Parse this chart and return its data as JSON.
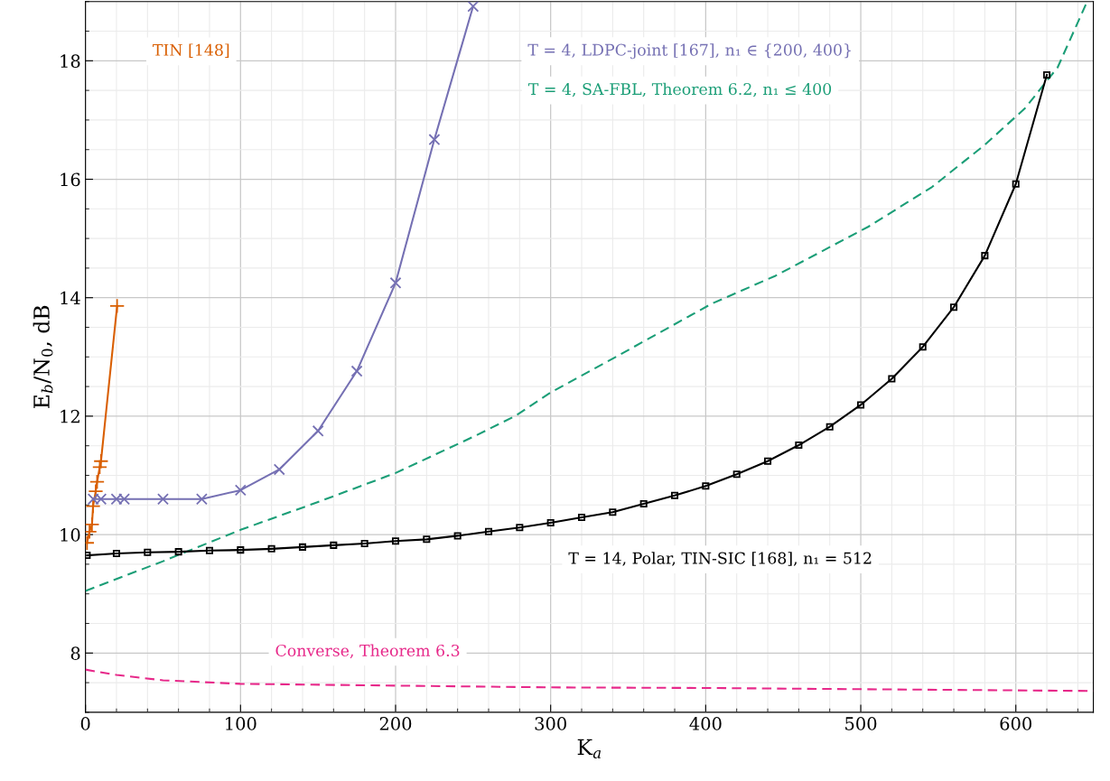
{
  "chart_data": {
    "type": "line",
    "xlabel": "K$_{a}$",
    "ylabel": "E$_{b}$/N$_{0}$, dB",
    "xlim": [
      0,
      650
    ],
    "xticks": [
      0,
      100,
      200,
      300,
      400,
      500,
      600
    ],
    "ylim": [
      7,
      19
    ],
    "yticks": [
      8,
      10,
      12,
      14,
      16,
      18
    ],
    "grid": true,
    "legend": false,
    "series": [
      {
        "name": "TIN [148]",
        "color": "#d95f02",
        "marker": "plus",
        "line_style": "solid",
        "x": [
          1,
          2.6,
          4.2,
          4.9,
          6.6,
          7.5,
          9.2,
          10,
          20.4
        ],
        "values": [
          9.86,
          10.05,
          10.17,
          10.48,
          10.73,
          10.89,
          11.14,
          11.24,
          13.86
        ]
      },
      {
        "name": "T = 4, LDPC-joint [167], n₁ ∈ {200, 400}",
        "color": "#7570b3",
        "marker": "cross",
        "line_style": "solid",
        "x": [
          5,
          10,
          20,
          25,
          50,
          75,
          100,
          125,
          150,
          175,
          200,
          225,
          250
        ],
        "values": [
          10.6,
          10.6,
          10.6,
          10.6,
          10.6,
          10.6,
          10.75,
          11.1,
          11.75,
          12.76,
          14.25,
          16.67,
          18.92
        ]
      },
      {
        "name": "T = 4, SA-FBL, Theorem 6.2, n₁ ≤ 400",
        "color": "#1b9e77",
        "marker": "none",
        "line_style": "dashed",
        "x": [
          0,
          50,
          100,
          150,
          200,
          250,
          277,
          300,
          342,
          404,
          445,
          505,
          546,
          580,
          606,
          627,
          646
        ],
        "values": [
          9.05,
          9.55,
          10.08,
          10.55,
          11.04,
          11.65,
          12.0,
          12.4,
          13.0,
          13.9,
          14.37,
          15.2,
          15.87,
          16.58,
          17.2,
          17.89,
          19.0
        ]
      },
      {
        "name": "T = 14, Polar, TIN-SIC [168], n₁ = 512",
        "color": "#000000",
        "marker": "square",
        "line_style": "solid",
        "x": [
          1,
          20,
          40,
          60,
          80,
          100,
          120,
          140,
          160,
          180,
          200,
          220,
          240,
          260,
          280,
          300,
          320,
          340,
          360,
          380,
          400,
          420,
          440,
          460,
          480,
          500,
          520,
          540,
          560,
          580,
          600,
          620
        ],
        "values": [
          9.65,
          9.68,
          9.7,
          9.71,
          9.73,
          9.74,
          9.76,
          9.79,
          9.82,
          9.85,
          9.89,
          9.92,
          9.98,
          10.05,
          10.12,
          10.2,
          10.29,
          10.38,
          10.52,
          10.66,
          10.82,
          11.02,
          11.24,
          11.51,
          11.82,
          12.19,
          12.63,
          13.17,
          13.84,
          14.71,
          15.92,
          17.76
        ]
      },
      {
        "name": "Converse, Theorem 6.3",
        "color": "#e7298a",
        "marker": "none",
        "line_style": "dashed",
        "x": [
          0,
          20,
          50,
          100,
          200,
          300,
          400,
          500,
          600,
          650
        ],
        "values": [
          7.72,
          7.63,
          7.54,
          7.48,
          7.45,
          7.42,
          7.41,
          7.39,
          7.37,
          7.36
        ]
      }
    ]
  }
}
